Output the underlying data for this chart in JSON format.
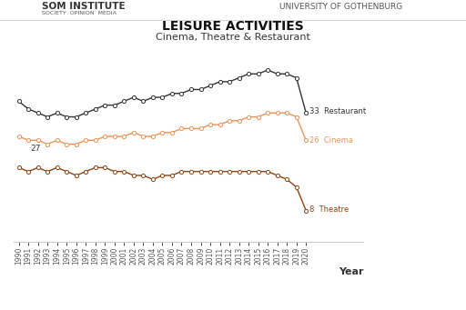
{
  "title": "LEISURE ACTIVITIES",
  "subtitle": "Cinema, Theatre & Restaurant",
  "xlabel": "Year",
  "years": [
    1990,
    1991,
    1992,
    1993,
    1994,
    1995,
    1996,
    1997,
    1998,
    1999,
    2000,
    2001,
    2002,
    2003,
    2004,
    2005,
    2006,
    2007,
    2008,
    2009,
    2010,
    2011,
    2012,
    2013,
    2014,
    2015,
    2016,
    2017,
    2018,
    2019,
    2020
  ],
  "restaurant": [
    36,
    34,
    33,
    32,
    33,
    32,
    32,
    33,
    34,
    35,
    35,
    36,
    37,
    36,
    37,
    37,
    38,
    38,
    39,
    39,
    40,
    41,
    41,
    42,
    43,
    43,
    44,
    43,
    43,
    42,
    33
  ],
  "cinema": [
    27,
    26,
    26,
    25,
    26,
    25,
    25,
    26,
    26,
    27,
    27,
    27,
    28,
    27,
    27,
    28,
    28,
    29,
    29,
    29,
    30,
    30,
    31,
    31,
    32,
    32,
    33,
    33,
    33,
    32,
    26
  ],
  "theatre": [
    19,
    18,
    19,
    18,
    19,
    18,
    17,
    18,
    19,
    19,
    18,
    18,
    17,
    17,
    16,
    17,
    17,
    18,
    18,
    18,
    18,
    18,
    18,
    18,
    18,
    18,
    18,
    17,
    16,
    14,
    8
  ],
  "restaurant_color": "#333333",
  "cinema_color": "#e8935a",
  "theatre_color": "#8b4513",
  "background_color": "#ffffff",
  "marker_facecolor": "white",
  "marker_size": 3,
  "linewidth": 1.0,
  "start_label": "27",
  "end_label_restaurant": "33  Restaurant",
  "end_label_cinema": "26  Cinema",
  "end_label_theatre": "8  Theatre"
}
